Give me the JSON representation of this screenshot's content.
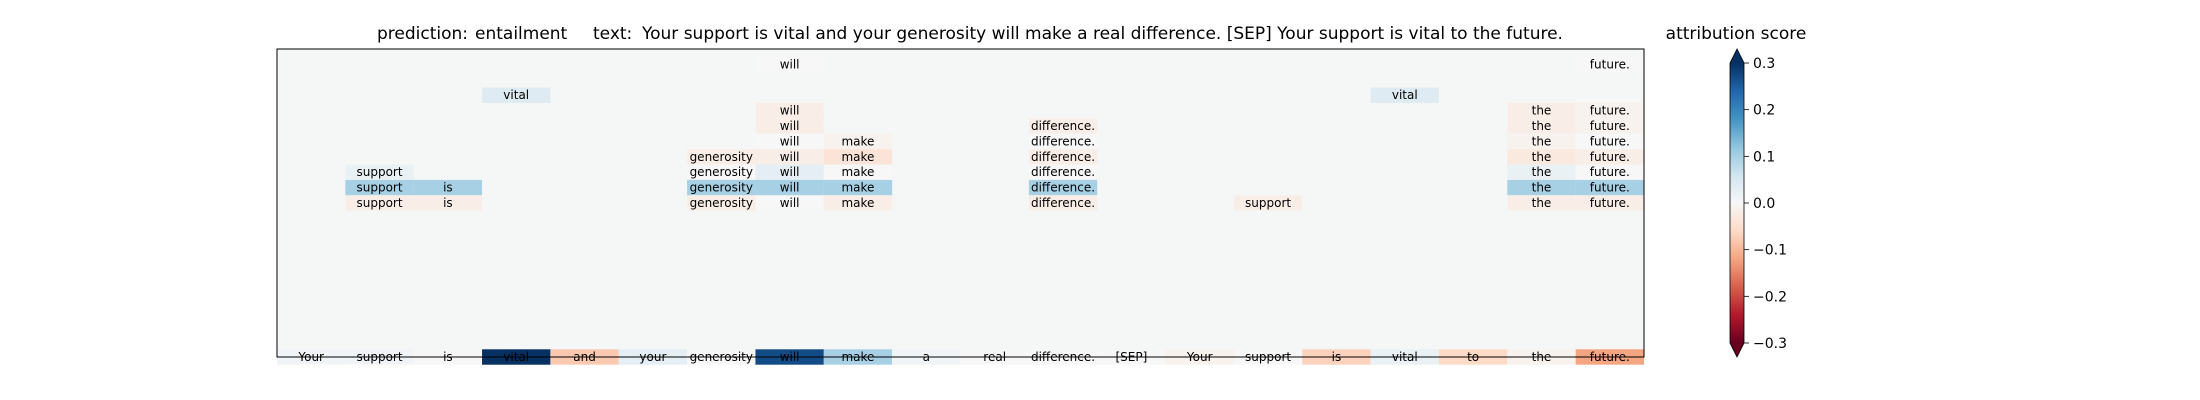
{
  "chart_data": {
    "type": "heatmap",
    "title_prediction_label": "prediction:",
    "title_prediction_value": "entailment",
    "title_text_label": "text:",
    "title_text_value": "Your support is vital and your generosity will make a real difference. [SEP] Your support is vital to the future.",
    "colorbar_title": "attribution score",
    "colorbar_range": [
      -0.3,
      0.3
    ],
    "colorbar_ticks": [
      {
        "value": 0.3,
        "label": "0.3"
      },
      {
        "value": 0.2,
        "label": "0.2"
      },
      {
        "value": 0.1,
        "label": "0.1"
      },
      {
        "value": 0.0,
        "label": "0.0"
      },
      {
        "value": -0.1,
        "label": "−0.1"
      },
      {
        "value": -0.2,
        "label": "−0.2"
      },
      {
        "value": -0.3,
        "label": "−0.3"
      }
    ],
    "colorscale": "RdBu",
    "tokens": [
      "Your",
      "support",
      "is",
      "vital",
      "and",
      "your",
      "generosity",
      "will",
      "make",
      "a",
      "real",
      "difference.",
      "[SEP]",
      "Your",
      "support",
      "is",
      "vital",
      "to",
      "the",
      "future."
    ],
    "token_row": [
      0.01,
      0.01,
      0.0,
      0.3,
      -0.08,
      0.03,
      0.0,
      0.27,
      0.1,
      0.01,
      0.0,
      0.0,
      0.0,
      -0.01,
      0.0,
      -0.07,
      0.02,
      -0.06,
      -0.01,
      -0.12
    ],
    "rows": [
      {
        "row": 1,
        "cells": [
          {
            "col": 7,
            "value": 0.0
          },
          {
            "col": 19,
            "value": 0.0
          }
        ]
      },
      {
        "row": 3,
        "cells": [
          {
            "col": 3,
            "value": 0.04
          },
          {
            "col": 16,
            "value": 0.04
          }
        ]
      },
      {
        "row": 4,
        "cells": [
          {
            "col": 7,
            "value": -0.02
          },
          {
            "col": 18,
            "value": -0.02
          },
          {
            "col": 19,
            "value": -0.01
          }
        ]
      },
      {
        "row": 5,
        "cells": [
          {
            "col": 7,
            "value": -0.02
          },
          {
            "col": 11,
            "value": -0.02
          },
          {
            "col": 18,
            "value": -0.02
          },
          {
            "col": 19,
            "value": -0.01
          }
        ]
      },
      {
        "row": 6,
        "cells": [
          {
            "col": 7,
            "value": 0.0
          },
          {
            "col": 8,
            "value": -0.01
          },
          {
            "col": 11,
            "value": 0.0
          },
          {
            "col": 18,
            "value": -0.01
          },
          {
            "col": 19,
            "value": 0.0
          }
        ]
      },
      {
        "row": 7,
        "cells": [
          {
            "col": 6,
            "value": -0.02
          },
          {
            "col": 7,
            "value": -0.02
          },
          {
            "col": 8,
            "value": -0.04
          },
          {
            "col": 11,
            "value": -0.02
          },
          {
            "col": 18,
            "value": -0.03
          },
          {
            "col": 19,
            "value": -0.02
          }
        ]
      },
      {
        "row": 8,
        "cells": [
          {
            "col": 1,
            "value": 0.02
          },
          {
            "col": 6,
            "value": 0.0
          },
          {
            "col": 7,
            "value": 0.03
          },
          {
            "col": 8,
            "value": 0.0
          },
          {
            "col": 11,
            "value": 0.0
          },
          {
            "col": 18,
            "value": 0.02
          },
          {
            "col": 19,
            "value": 0.0
          }
        ]
      },
      {
        "row": 9,
        "cells": [
          {
            "col": 1,
            "value": 0.1
          },
          {
            "col": 2,
            "value": 0.1
          },
          {
            "col": 6,
            "value": 0.1
          },
          {
            "col": 7,
            "value": 0.1
          },
          {
            "col": 8,
            "value": 0.1
          },
          {
            "col": 11,
            "value": 0.1
          },
          {
            "col": 18,
            "value": 0.1
          },
          {
            "col": 19,
            "value": 0.1
          }
        ]
      },
      {
        "row": 10,
        "cells": [
          {
            "col": 1,
            "value": -0.02
          },
          {
            "col": 2,
            "value": -0.02
          },
          {
            "col": 6,
            "value": -0.02
          },
          {
            "col": 7,
            "value": 0.0
          },
          {
            "col": 8,
            "value": -0.02
          },
          {
            "col": 11,
            "value": -0.02
          },
          {
            "col": 14,
            "value": -0.02
          },
          {
            "col": 18,
            "value": -0.02
          },
          {
            "col": 19,
            "value": -0.02
          }
        ]
      }
    ]
  }
}
